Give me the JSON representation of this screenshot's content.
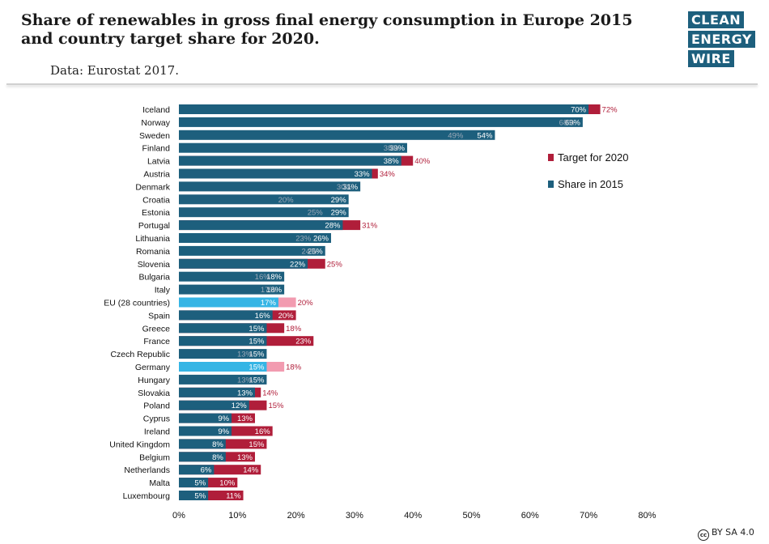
{
  "title": "Share of renewables in gross final energy consumption in Europe 2015 and country target share for 2020.",
  "subtitle": "Data: Eurostat 2017.",
  "logo": {
    "line1": "CLEAN",
    "line2": "ENERGY",
    "line3": "WIRE"
  },
  "license": "BY SA 4.0",
  "license_icon": "creative-commons-icon",
  "colors": {
    "share": "#1d5f7d",
    "target": "#b01e3a",
    "highlight_share": "#35b5e5",
    "highlight_target": "#f29bb0",
    "share_inside_below_target": "#9aa9b8",
    "target_label": "#b01e3a"
  },
  "chart_data": {
    "type": "bar",
    "orientation": "horizontal",
    "title": "Share of renewables in gross final energy consumption in Europe 2015 and country target share for 2020.",
    "xlim": [
      0,
      80
    ],
    "xticks": [
      "0%",
      "10%",
      "20%",
      "30%",
      "40%",
      "50%",
      "60%",
      "70%",
      "80%"
    ],
    "xtick_values": [
      0,
      10,
      20,
      30,
      40,
      50,
      60,
      70,
      80
    ],
    "legend": {
      "position": "right",
      "entries": [
        "Target for 2020",
        "Share in 2015"
      ]
    },
    "categories": [
      "Iceland",
      "Norway",
      "Sweden",
      "Finland",
      "Latvia",
      "Austria",
      "Denmark",
      "Croatia",
      "Estonia",
      "Portugal",
      "Lithuania",
      "Romania",
      "Slovenia",
      "Bulgaria",
      "Italy",
      "EU (28 countries)",
      "Spain",
      "Greece",
      "France",
      "Czech Republic",
      "Germany",
      "Hungary",
      "Slovakia",
      "Poland",
      "Cyprus",
      "Ireland",
      "United Kingdom",
      "Belgium",
      "Netherlands",
      "Malta",
      "Luxembourg"
    ],
    "highlighted": [
      "EU (28 countries)",
      "Germany"
    ],
    "series": [
      {
        "name": "Share in 2015",
        "values": [
          70,
          69,
          54,
          39,
          38,
          33,
          31,
          29,
          29,
          28,
          26,
          25,
          22,
          18,
          18,
          17,
          16,
          15,
          15,
          15,
          15,
          15,
          13,
          12,
          9,
          9,
          8,
          8,
          6,
          5,
          5
        ],
        "labels": [
          "70%",
          "69%",
          "54%",
          "39%",
          "38%",
          "33%",
          "31%",
          "29%",
          "29%",
          "28%",
          "26%",
          "25%",
          "22%",
          "18%",
          "18%",
          "17%",
          "16%",
          "15%",
          "15%",
          "15%",
          "15%",
          "15%",
          "13%",
          "12%",
          "9%",
          "9%",
          "8%",
          "8%",
          "6%",
          "5%",
          "5%"
        ]
      },
      {
        "name": "Target for 2020",
        "values": [
          72,
          68,
          49,
          38,
          40,
          34,
          30,
          20,
          25,
          31,
          23,
          24,
          25,
          16,
          17,
          20,
          20,
          18,
          23,
          13,
          18,
          13,
          14,
          15,
          13,
          16,
          15,
          13,
          14,
          10,
          11
        ],
        "labels": [
          "72%",
          "68%",
          "49%",
          "38%",
          "40%",
          "34%",
          "30%",
          "20%",
          "25%",
          "31%",
          "23%",
          "24%",
          "25%",
          "16%",
          "17%",
          "20%",
          "20%",
          "18%",
          "23%",
          "13%",
          "18%",
          "13%",
          "14%",
          "15%",
          "13%",
          "16%",
          "15%",
          "13%",
          "14%",
          "10%",
          "11%"
        ]
      }
    ]
  }
}
